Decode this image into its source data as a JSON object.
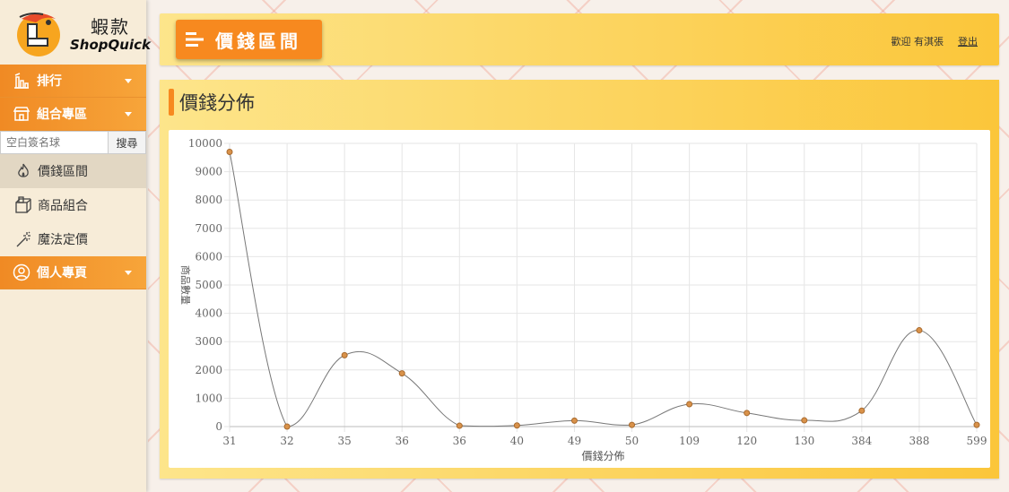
{
  "brand": {
    "cn": "蝦款",
    "en": "ShopQuick"
  },
  "sidebar": {
    "sections": [
      {
        "label": "排行"
      },
      {
        "label": "組合專區"
      },
      {
        "label": "個人專頁"
      }
    ],
    "search": {
      "placeholder": "空白簽名球",
      "button": "搜尋"
    },
    "items": [
      {
        "label": "價錢區間",
        "icon": "fire-icon",
        "active": true
      },
      {
        "label": "商品組合",
        "icon": "box-icon",
        "active": false
      },
      {
        "label": "魔法定價",
        "icon": "magic-wand-icon",
        "active": false
      }
    ]
  },
  "header": {
    "page_title": "價錢區間",
    "welcome": "歡迎 有淇張",
    "logout": "登出"
  },
  "panel": {
    "title": "價錢分佈"
  },
  "colors": {
    "accent": "#f7891f",
    "panel": "#fbc63a",
    "point": "#d9924a",
    "line": "#777777"
  },
  "chart_data": {
    "type": "line",
    "categories": [
      "31",
      "32",
      "35",
      "36",
      "36",
      "40",
      "49",
      "50",
      "109",
      "120",
      "130",
      "384",
      "388",
      "599"
    ],
    "series": [
      {
        "values": [
          9700,
          0,
          2520,
          1880,
          30,
          40,
          210,
          60,
          790,
          480,
          220,
          560,
          3400,
          60
        ]
      }
    ],
    "xlabel": "價錢分佈",
    "ylabel": "商品數量",
    "ylim": [
      0,
      10000
    ],
    "yticks": [
      0,
      1000,
      2000,
      3000,
      4000,
      5000,
      6000,
      7000,
      8000,
      9000,
      10000
    ],
    "grid": true,
    "smooth": true
  }
}
